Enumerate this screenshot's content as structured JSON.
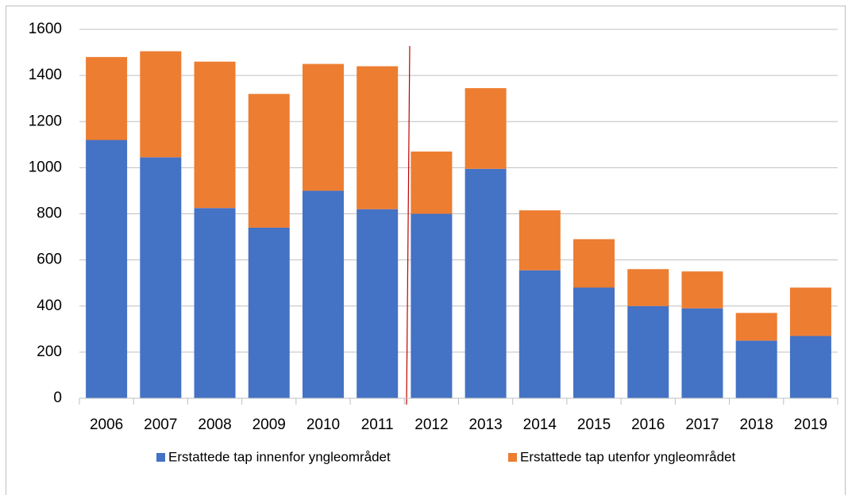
{
  "chart_data": {
    "type": "stacked_bar",
    "categories": [
      "2006",
      "2007",
      "2008",
      "2009",
      "2010",
      "2011",
      "2012",
      "2013",
      "2014",
      "2015",
      "2016",
      "2017",
      "2018",
      "2019"
    ],
    "series": [
      {
        "name": "Erstattede tap innenfor yngleområdet",
        "color": "#4472c4",
        "values": [
          1120,
          1045,
          825,
          740,
          900,
          820,
          800,
          995,
          555,
          480,
          400,
          390,
          250,
          270
        ]
      },
      {
        "name": "Erstattede tap utenfor yngleområdet",
        "color": "#ed7d31",
        "values": [
          360,
          460,
          635,
          580,
          550,
          620,
          270,
          350,
          260,
          210,
          160,
          160,
          120,
          210
        ]
      }
    ],
    "ylim": [
      0,
      1600
    ],
    "yticks": [
      0,
      200,
      400,
      600,
      800,
      1000,
      1200,
      1400,
      1600
    ],
    "grid": true,
    "legend": "bottom"
  }
}
